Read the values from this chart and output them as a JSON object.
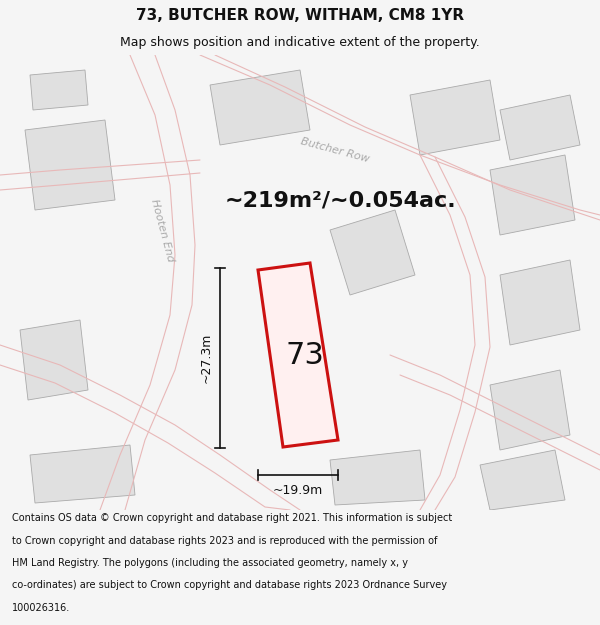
{
  "title_line1": "73, BUTCHER ROW, WITHAM, CM8 1YR",
  "title_line2": "Map shows position and indicative extent of the property.",
  "area_text": "~219m²/~0.054ac.",
  "label_73": "73",
  "dim_width": "~19.9m",
  "dim_height": "~27.3m",
  "footer_text": "Contains OS data © Crown copyright and database right 2021. This information is subject to Crown copyright and database rights 2023 and is reproduced with the permission of HM Land Registry. The polygons (including the associated geometry, namely x, y co-ordinates) are subject to Crown copyright and database rights 2023 Ordnance Survey 100026316.",
  "bg_color": "#f5f5f5",
  "map_bg": "#ffffff",
  "building_fill": "#e0e0e0",
  "building_stroke": "#aaaaaa",
  "road_fill_color": "#f8f8f8",
  "road_stroke_color": "#e8b8b8",
  "highlight_fill": "#fff0f0",
  "highlight_stroke": "#cc1111",
  "dim_color": "#111111",
  "text_color": "#111111",
  "label_color": "#aaaaaa",
  "footer_color": "#111111",
  "title_fontsize": 11,
  "subtitle_fontsize": 9,
  "area_fontsize": 16,
  "label_fontsize": 22,
  "road_label_fontsize": 8,
  "dim_fontsize": 9,
  "footer_fontsize": 7.0
}
